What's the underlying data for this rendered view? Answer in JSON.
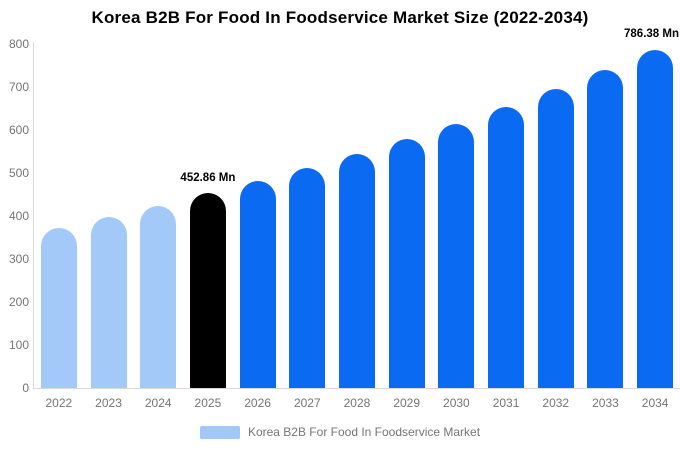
{
  "title": "Korea B2B For Food In Foodservice Market Size (2022-2034)",
  "legend": {
    "label": "Korea B2B For Food In Foodservice Market"
  },
  "palette": {
    "light_blue": "#a3c9f8",
    "blue": "#0a6bf2",
    "black": "#000000",
    "axis_line": "#d9d9d9",
    "tick_text": "#757575",
    "title_text": "#000000"
  },
  "chart_data": {
    "type": "bar",
    "title": "Korea B2B For Food In Foodservice Market Size (2022-2034)",
    "unit": "Mn",
    "categories": [
      "2022",
      "2023",
      "2024",
      "2025",
      "2026",
      "2027",
      "2028",
      "2029",
      "2030",
      "2031",
      "2032",
      "2033",
      "2034"
    ],
    "values": [
      373,
      398,
      423,
      452.86,
      481,
      512,
      544,
      578,
      615,
      654,
      695,
      740,
      786.38
    ],
    "bar_color_keys": [
      "light_blue",
      "light_blue",
      "light_blue",
      "black",
      "blue",
      "blue",
      "blue",
      "blue",
      "blue",
      "blue",
      "blue",
      "blue",
      "blue"
    ],
    "xlabel": "",
    "ylabel": "",
    "ylim": [
      0,
      800
    ],
    "yticks": [
      0,
      100,
      200,
      300,
      400,
      500,
      600,
      700,
      800
    ],
    "grid": false,
    "legend_position": "bottom",
    "annotations": [
      {
        "index": 3,
        "text": "452.86 Mn",
        "align": "center"
      },
      {
        "index": 12,
        "text": "786.38 Mn",
        "align": "right-edge"
      }
    ]
  }
}
